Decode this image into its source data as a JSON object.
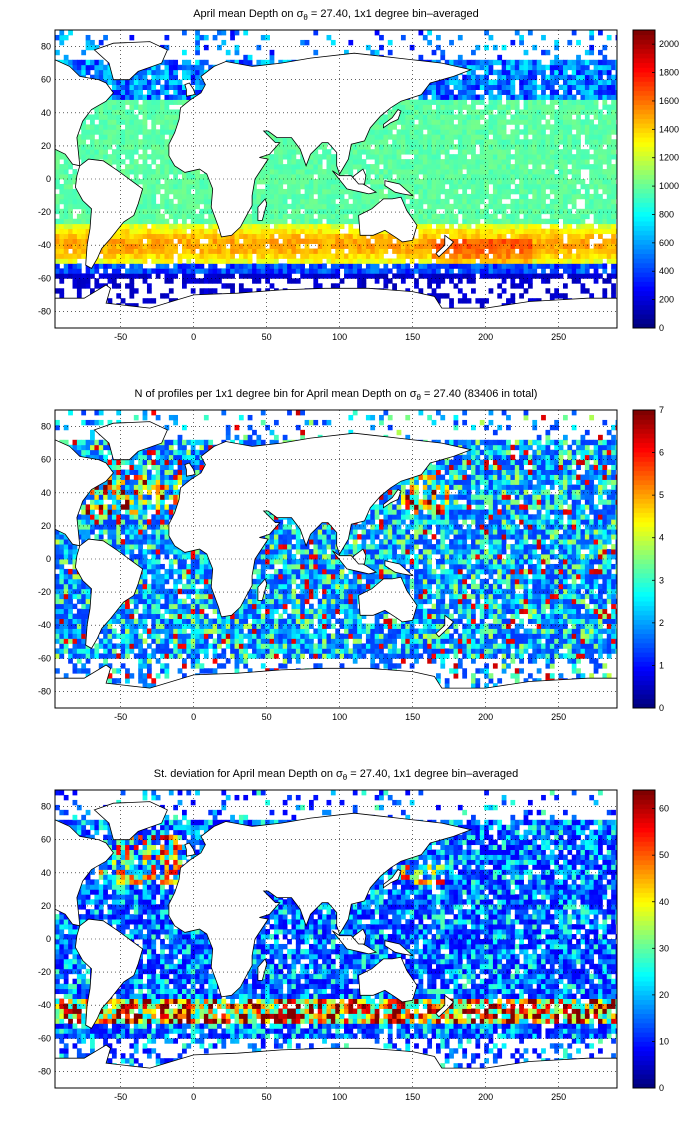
{
  "chart_data": [
    {
      "type": "heatmap",
      "title": {
        "part1": "April mean Depth on ",
        "sigma": "σ",
        "sub": "θ",
        "part2": " = 27.40, 1x1 degree bin–averaged"
      },
      "xlim": [
        -95,
        290
      ],
      "ylim": [
        -90,
        90
      ],
      "xticks": [
        -50,
        0,
        50,
        100,
        150,
        200,
        250
      ],
      "yticks": [
        80,
        60,
        40,
        20,
        0,
        -20,
        -40,
        -60,
        -80
      ],
      "colorbar": {
        "min": 0,
        "max": 2100,
        "ticks": [
          0,
          200,
          400,
          600,
          800,
          1000,
          1200,
          1400,
          1600,
          1800,
          2000
        ]
      },
      "grid": true
    },
    {
      "type": "heatmap",
      "title": {
        "part1": "N of profiles per 1x1 degree bin for April mean Depth on ",
        "sigma": "σ",
        "sub": "θ",
        "part2": " = 27.40 (83406 in total)"
      },
      "xlim": [
        -95,
        290
      ],
      "ylim": [
        -90,
        90
      ],
      "xticks": [
        -50,
        0,
        50,
        100,
        150,
        200,
        250
      ],
      "yticks": [
        80,
        60,
        40,
        20,
        0,
        -20,
        -40,
        -60,
        -80
      ],
      "colorbar": {
        "min": 0,
        "max": 7,
        "ticks": [
          0,
          1,
          2,
          3,
          4,
          5,
          6,
          7
        ]
      },
      "grid": true
    },
    {
      "type": "heatmap",
      "title": {
        "part1": "St. deviation for April mean Depth on ",
        "sigma": "σ",
        "sub": "θ",
        "part2": " = 27.40, 1x1 degree bin–averaged"
      },
      "xlim": [
        -95,
        290
      ],
      "ylim": [
        -90,
        90
      ],
      "xticks": [
        -50,
        0,
        50,
        100,
        150,
        200,
        250
      ],
      "yticks": [
        80,
        60,
        40,
        20,
        0,
        -20,
        -40,
        -60,
        -80
      ],
      "colorbar": {
        "min": 0,
        "max": 64,
        "ticks": [
          0,
          10,
          20,
          30,
          40,
          50,
          60
        ]
      },
      "grid": true
    }
  ]
}
